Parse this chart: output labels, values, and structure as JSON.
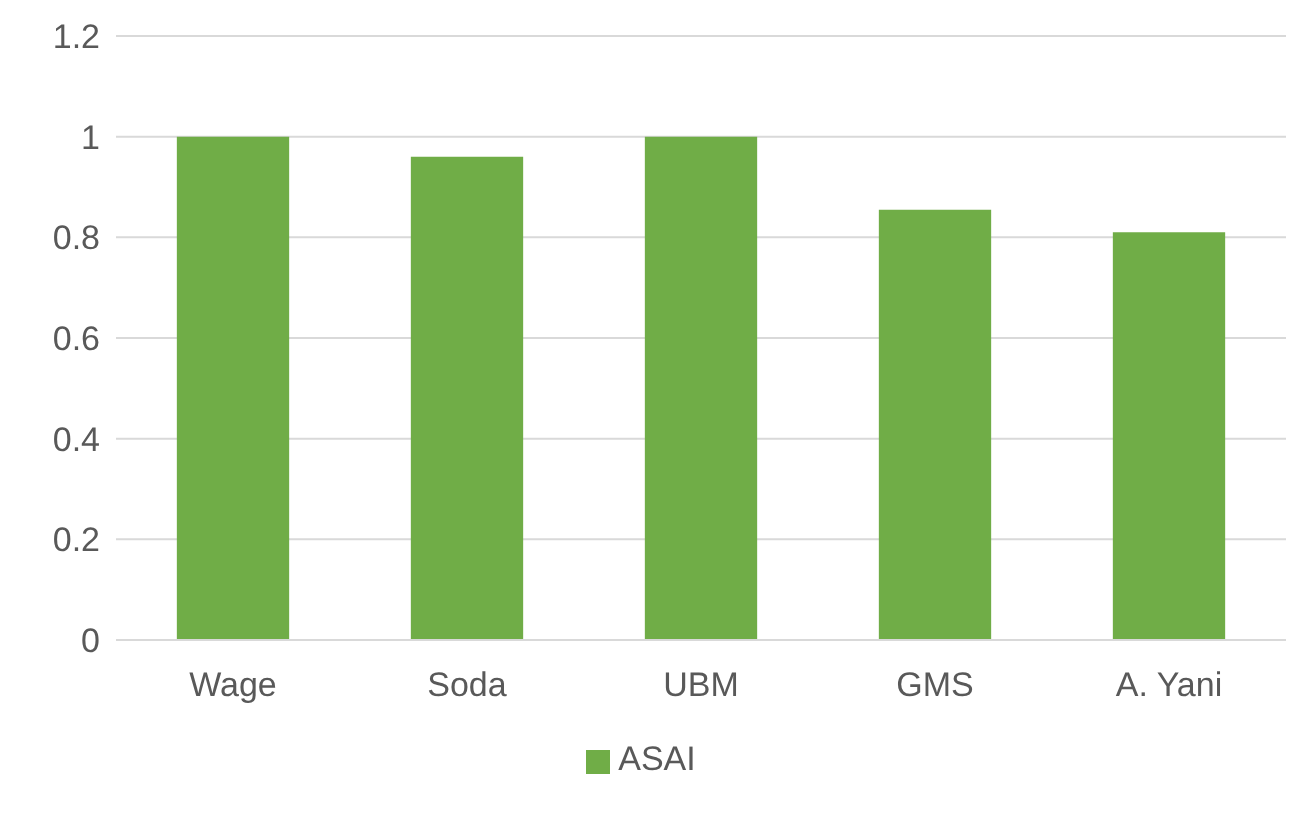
{
  "chart_data": {
    "type": "bar",
    "categories": [
      "Wage",
      "Soda",
      "UBM",
      "GMS",
      "A. Yani"
    ],
    "series": [
      {
        "name": "ASAI",
        "color": "#70ad47",
        "values": [
          1.0,
          0.96,
          1.0,
          0.855,
          0.81
        ]
      }
    ],
    "ylim": [
      0,
      1.2
    ],
    "yticks": [
      0,
      0.2,
      0.4,
      0.6,
      0.8,
      1,
      1.2
    ],
    "grid": "y",
    "legend": "bottom"
  }
}
